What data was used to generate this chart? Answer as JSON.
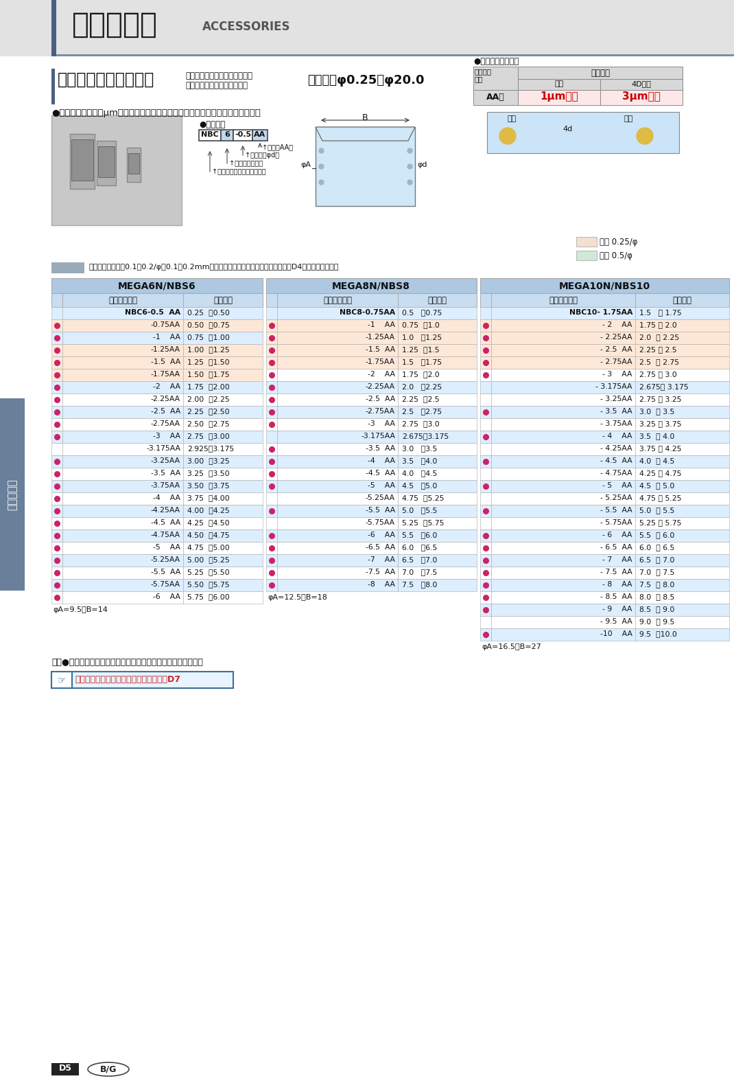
{
  "page_bg": "#ffffff",
  "header_bar_dark": "#4a6080",
  "header_bg": "#e0e0e0",
  "header_line": "#7a90a8",
  "title_jp": "アクセサリ",
  "title_en": "ACCESSORIES",
  "section_bar_color": "#4a6080",
  "section_title": "ニューベビーコレット",
  "section_subtitle_line1": "メガニューベビーチャック・",
  "section_subtitle_line2": "ニューベビーチャック用",
  "section_range": "把握径：φ0.25～φ20.0",
  "bullet1": "●世界に誇る口元１μmの振れ精度は、超高速回転にも抜群の威力を発揮します。",
  "type_label": "●型式説明",
  "nbc_parts": [
    "NBC",
    "6",
    "-0.5",
    "AA"
  ],
  "arrow_labels": [
    "↑等級（AA）",
    "↑把握径（φd）",
    "↑適合本体サイズ",
    "↑ニューベビーコレットの略"
  ],
  "precision_title": "●コレット単体精度",
  "prec_col1": "コレット\n等級",
  "prec_header": "振れ精度",
  "prec_kuchi": "口元",
  "prec_4d": "4D先端",
  "prec_aa": "AA級",
  "prec_val1": "1μm以内",
  "prec_val2": "3μm以内",
  "prec_kuchi2": "口元",
  "prec_senten": "先端",
  "legend_note": "の把握径では縮代0.1～0.2/φ（0.1～0.2mmトビ）シリーズもございます。詳しくはD4を参照ください。",
  "legend_025": "縮代 0.25/φ",
  "legend_05": "縮代 0.5/φ",
  "legend_025_color": "#f5e0d0",
  "legend_05_color": "#d0e8d8",
  "table_header_bg": "#adc8e0",
  "table_subheader_bg": "#c8ddf0",
  "table_row_light_bg": "#ddeeff",
  "table_row_white_bg": "#ffffff",
  "table_row_orange_bg": "#fde8d8",
  "table_border_color": "#aaaaaa",
  "dot_color": "#cc2266",
  "mega6_title": "MEGA6N/NBS6",
  "mega8_title": "MEGA8N/NBS8",
  "mega10_title": "MEGA10N/NBS10",
  "col_model": "コレット型式",
  "col_range": "把握範囲",
  "mega6_footer": "φA=9.5　B=14",
  "mega8_footer": "φA=12.5　B=18",
  "mega10_footer": "φA=16.5　B=27",
  "bottom_note": "表中●印は「ニューベビーコレットセット」のセット内容です。",
  "bottom_link": "ニューベビーコレットセットについてはD7",
  "side_label": "アクセサリ",
  "page_num": "D5",
  "mega6_rows": [
    {
      "dot": false,
      "model": "NBC6-0.5  AA",
      "range": "0.25  。0.50",
      "orange": false
    },
    {
      "dot": true,
      "model": "-0.75AA",
      "range": "0.50  。0.75",
      "orange": true
    },
    {
      "dot": true,
      "model": "-1    AA",
      "range": "0.75  。1.00",
      "orange": false
    },
    {
      "dot": true,
      "model": "-1.25AA",
      "range": "1.00  。1.25",
      "orange": true
    },
    {
      "dot": true,
      "model": "-1.5  AA",
      "range": "1.25  。1.50",
      "orange": true
    },
    {
      "dot": true,
      "model": "-1.75AA",
      "range": "1.50  。1.75",
      "orange": true
    },
    {
      "dot": true,
      "model": "-2    AA",
      "range": "1.75  。2.00",
      "orange": false
    },
    {
      "dot": true,
      "model": "-2.25AA",
      "range": "2.00  。2.25",
      "orange": false
    },
    {
      "dot": true,
      "model": "-2.5  AA",
      "range": "2.25  。2.50",
      "orange": false
    },
    {
      "dot": true,
      "model": "-2.75AA",
      "range": "2.50  。2.75",
      "orange": false
    },
    {
      "dot": true,
      "model": "-3    AA",
      "range": "2.75  。3.00",
      "orange": false
    },
    {
      "dot": false,
      "model": "-3.175AA",
      "range": "2.925。3.175",
      "orange": false
    },
    {
      "dot": true,
      "model": "-3.25AA",
      "range": "3.00  。3.25",
      "orange": false
    },
    {
      "dot": true,
      "model": "-3.5  AA",
      "range": "3.25  。3.50",
      "orange": false
    },
    {
      "dot": true,
      "model": "-3.75AA",
      "range": "3.50  。3.75",
      "orange": false
    },
    {
      "dot": true,
      "model": "-4    AA",
      "range": "3.75  。4.00",
      "orange": false
    },
    {
      "dot": true,
      "model": "-4.25AA",
      "range": "4.00  。4.25",
      "orange": false
    },
    {
      "dot": true,
      "model": "-4.5  AA",
      "range": "4.25  。4.50",
      "orange": false
    },
    {
      "dot": true,
      "model": "-4.75AA",
      "range": "4.50  。4.75",
      "orange": false
    },
    {
      "dot": true,
      "model": "-5    AA",
      "range": "4.75  。5.00",
      "orange": false
    },
    {
      "dot": true,
      "model": "-5.25AA",
      "range": "5.00  。5.25",
      "orange": false
    },
    {
      "dot": true,
      "model": "-5.5  AA",
      "range": "5.25  。5.50",
      "orange": false
    },
    {
      "dot": true,
      "model": "-5.75AA",
      "range": "5.50  。5.75",
      "orange": false
    },
    {
      "dot": true,
      "model": "-6    AA",
      "range": "5.75  。6.00",
      "orange": false
    }
  ],
  "mega8_rows": [
    {
      "dot": false,
      "model": "NBC8-0.75AA",
      "range": "0.5   。0.75",
      "orange": false
    },
    {
      "dot": true,
      "model": "-1    AA",
      "range": "0.75  。1.0",
      "orange": true
    },
    {
      "dot": true,
      "model": "-1.25AA",
      "range": "1.0   。1.25",
      "orange": true
    },
    {
      "dot": true,
      "model": "-1.5  AA",
      "range": "1.25  。1.5",
      "orange": true
    },
    {
      "dot": true,
      "model": "-1.75AA",
      "range": "1.5   。1.75",
      "orange": true
    },
    {
      "dot": true,
      "model": "-2    AA",
      "range": "1.75  。2.0",
      "orange": false
    },
    {
      "dot": true,
      "model": "-2.25AA",
      "range": "2.0   。2.25",
      "orange": false
    },
    {
      "dot": true,
      "model": "-2.5  AA",
      "range": "2.25  。2.5",
      "orange": false
    },
    {
      "dot": true,
      "model": "-2.75AA",
      "range": "2.5   。2.75",
      "orange": false
    },
    {
      "dot": true,
      "model": "-3    AA",
      "range": "2.75  。3.0",
      "orange": false
    },
    {
      "dot": false,
      "model": "-3.175AA",
      "range": "2.675。3.175",
      "orange": false
    },
    {
      "dot": true,
      "model": "-3.5  AA",
      "range": "3.0   。3.5",
      "orange": false
    },
    {
      "dot": true,
      "model": "-4    AA",
      "range": "3.5   。4.0",
      "orange": false
    },
    {
      "dot": true,
      "model": "-4.5  AA",
      "range": "4.0   。4.5",
      "orange": false
    },
    {
      "dot": true,
      "model": "-5    AA",
      "range": "4.5   。5.0",
      "orange": false
    },
    {
      "dot": false,
      "model": "-5.25AA",
      "range": "4.75  。5.25",
      "orange": false
    },
    {
      "dot": true,
      "model": "-5.5  AA",
      "range": "5.0   。5.5",
      "orange": false
    },
    {
      "dot": false,
      "model": "-5.75AA",
      "range": "5.25  。5.75",
      "orange": false
    },
    {
      "dot": true,
      "model": "-6    AA",
      "range": "5.5   。6.0",
      "orange": false
    },
    {
      "dot": true,
      "model": "-6.5  AA",
      "range": "6.0   。6.5",
      "orange": false
    },
    {
      "dot": true,
      "model": "-7    AA",
      "range": "6.5   。7.0",
      "orange": false
    },
    {
      "dot": true,
      "model": "-7.5  AA",
      "range": "7.0   。7.5",
      "orange": false
    },
    {
      "dot": true,
      "model": "-8    AA",
      "range": "7.5   。8.0",
      "orange": false
    }
  ],
  "mega10_rows": [
    {
      "dot": false,
      "model": "NBC10- 1.75AA",
      "range": "1.5   。 1.75",
      "orange": false
    },
    {
      "dot": true,
      "model": "- 2    AA",
      "range": "1.75 。 2.0",
      "orange": true
    },
    {
      "dot": true,
      "model": "- 2.25AA",
      "range": "2.0  。 2.25",
      "orange": true
    },
    {
      "dot": true,
      "model": "- 2.5  AA",
      "range": "2.25 。 2.5",
      "orange": true
    },
    {
      "dot": true,
      "model": "- 2.75AA",
      "range": "2.5  。 2.75",
      "orange": true
    },
    {
      "dot": true,
      "model": "- 3    AA",
      "range": "2.75 。 3.0",
      "orange": false
    },
    {
      "dot": false,
      "model": "- 3.175AA",
      "range": "2.675。 3.175",
      "orange": false
    },
    {
      "dot": false,
      "model": "- 3.25AA",
      "range": "2.75 。 3.25",
      "orange": false
    },
    {
      "dot": true,
      "model": "- 3.5  AA",
      "range": "3.0  。 3.5",
      "orange": false
    },
    {
      "dot": false,
      "model": "- 3.75AA",
      "range": "3.25 。 3.75",
      "orange": false
    },
    {
      "dot": true,
      "model": "- 4    AA",
      "range": "3.5  。 4.0",
      "orange": false
    },
    {
      "dot": false,
      "model": "- 4.25AA",
      "range": "3.75 。 4.25",
      "orange": false
    },
    {
      "dot": true,
      "model": "- 4.5  AA",
      "range": "4.0  。 4.5",
      "orange": false
    },
    {
      "dot": false,
      "model": "- 4.75AA",
      "range": "4.25 。 4.75",
      "orange": false
    },
    {
      "dot": true,
      "model": "- 5    AA",
      "range": "4.5  。 5.0",
      "orange": false
    },
    {
      "dot": false,
      "model": "- 5.25AA",
      "range": "4.75 。 5.25",
      "orange": false
    },
    {
      "dot": true,
      "model": "- 5.5  AA",
      "range": "5.0  。 5.5",
      "orange": false
    },
    {
      "dot": false,
      "model": "- 5.75AA",
      "range": "5.25 。 5.75",
      "orange": false
    },
    {
      "dot": true,
      "model": "- 6    AA",
      "range": "5.5  。 6.0",
      "orange": false
    },
    {
      "dot": true,
      "model": "- 6.5  AA",
      "range": "6.0  。 6.5",
      "orange": false
    },
    {
      "dot": true,
      "model": "- 7    AA",
      "range": "6.5  。 7.0",
      "orange": false
    },
    {
      "dot": true,
      "model": "- 7.5  AA",
      "range": "7.0  。 7.5",
      "orange": false
    },
    {
      "dot": true,
      "model": "- 8    AA",
      "range": "7.5  。 8.0",
      "orange": false
    },
    {
      "dot": true,
      "model": "- 8.5  AA",
      "range": "8.0  。 8.5",
      "orange": false
    },
    {
      "dot": true,
      "model": "- 9    AA",
      "range": "8.5  。 9.0",
      "orange": false
    },
    {
      "dot": false,
      "model": "- 9.5  AA",
      "range": "9.0  。 9.5",
      "orange": false
    },
    {
      "dot": true,
      "model": "-10    AA",
      "range": "9.5  。10.0",
      "orange": false
    }
  ]
}
